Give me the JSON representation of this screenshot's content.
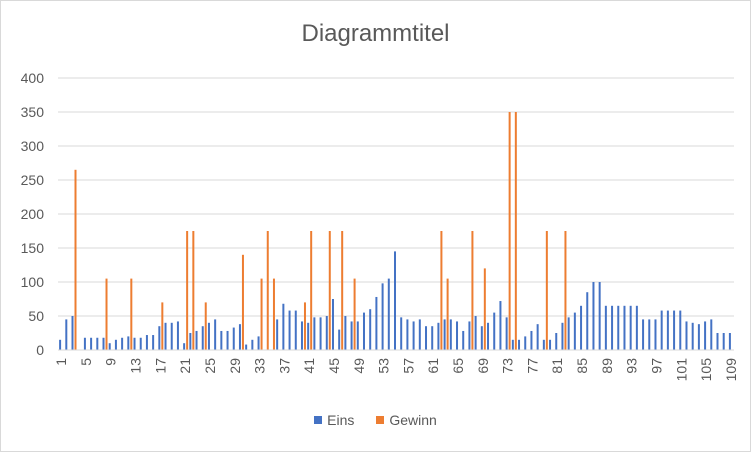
{
  "chart_data": {
    "type": "bar",
    "title": "Diagrammtitel",
    "xlabel": "",
    "ylabel": "",
    "ylim": [
      0,
      400
    ],
    "yticks": [
      "0",
      "50",
      "100",
      "150",
      "200",
      "250",
      "300",
      "350",
      "400"
    ],
    "grid": true,
    "legend_position": "bottom",
    "colors": {
      "Eins": "#4472c4",
      "Gewinn": "#ed7d31",
      "grid": "#d9d9d9",
      "text": "#595959"
    },
    "x": [
      1,
      2,
      3,
      4,
      5,
      6,
      7,
      8,
      9,
      10,
      11,
      12,
      13,
      14,
      15,
      16,
      17,
      18,
      19,
      20,
      21,
      22,
      23,
      24,
      25,
      26,
      27,
      28,
      29,
      30,
      31,
      32,
      33,
      34,
      35,
      36,
      37,
      38,
      39,
      40,
      41,
      42,
      43,
      44,
      45,
      46,
      47,
      48,
      49,
      50,
      51,
      52,
      53,
      54,
      55,
      56,
      57,
      58,
      59,
      60,
      61,
      62,
      63,
      64,
      65,
      66,
      67,
      68,
      69,
      70,
      71,
      72,
      73,
      74,
      75,
      76,
      77,
      78,
      79,
      80,
      81,
      82,
      83,
      84,
      85,
      86,
      87,
      88,
      89,
      90,
      91,
      92,
      93,
      94,
      95,
      96,
      97,
      98,
      99,
      100,
      101,
      102,
      103,
      104,
      105,
      106,
      107,
      108,
      109
    ],
    "xtick_labels": [
      "1",
      "5",
      "9",
      "13",
      "17",
      "21",
      "25",
      "29",
      "33",
      "37",
      "41",
      "45",
      "49",
      "53",
      "57",
      "61",
      "65",
      "69",
      "73",
      "77",
      "81",
      "85",
      "89",
      "93",
      "97",
      "101",
      "105",
      "109"
    ],
    "series": [
      {
        "name": "Eins",
        "values": [
          15,
          45,
          50,
          0,
          18,
          18,
          18,
          18,
          10,
          15,
          18,
          20,
          18,
          18,
          22,
          22,
          35,
          40,
          40,
          42,
          10,
          25,
          28,
          35,
          40,
          45,
          28,
          28,
          33,
          38,
          8,
          15,
          20,
          0,
          0,
          45,
          68,
          58,
          58,
          42,
          40,
          48,
          48,
          50,
          75,
          30,
          50,
          42,
          42,
          55,
          60,
          78,
          98,
          105,
          145,
          48,
          45,
          42,
          45,
          35,
          35,
          40,
          45,
          45,
          42,
          28,
          42,
          50,
          35,
          40,
          55,
          72,
          48,
          15,
          15,
          20,
          28,
          38,
          15,
          15,
          25,
          40,
          48,
          55,
          65,
          85,
          100,
          100,
          65,
          65,
          65,
          65,
          65,
          65,
          45,
          45,
          45,
          58,
          58,
          58,
          58,
          42,
          40,
          38,
          42,
          45,
          25,
          25,
          25
        ]
      },
      {
        "name": "Gewinn",
        "values": [
          0,
          0,
          265,
          0,
          0,
          0,
          0,
          105,
          0,
          0,
          0,
          105,
          0,
          0,
          0,
          0,
          70,
          0,
          0,
          0,
          175,
          175,
          0,
          70,
          0,
          0,
          0,
          0,
          0,
          140,
          0,
          0,
          105,
          175,
          105,
          0,
          0,
          0,
          0,
          70,
          175,
          0,
          0,
          175,
          0,
          175,
          0,
          105,
          0,
          0,
          0,
          0,
          0,
          0,
          0,
          0,
          0,
          0,
          0,
          0,
          0,
          175,
          105,
          0,
          0,
          0,
          175,
          0,
          120,
          0,
          0,
          0,
          350,
          350,
          0,
          0,
          0,
          0,
          175,
          0,
          0,
          175,
          0,
          0,
          0,
          0,
          0,
          0,
          0,
          0,
          0,
          0,
          0,
          0,
          0,
          0,
          0,
          0,
          0,
          0,
          0,
          0,
          0,
          0,
          0,
          0,
          0,
          0,
          0
        ]
      }
    ]
  }
}
